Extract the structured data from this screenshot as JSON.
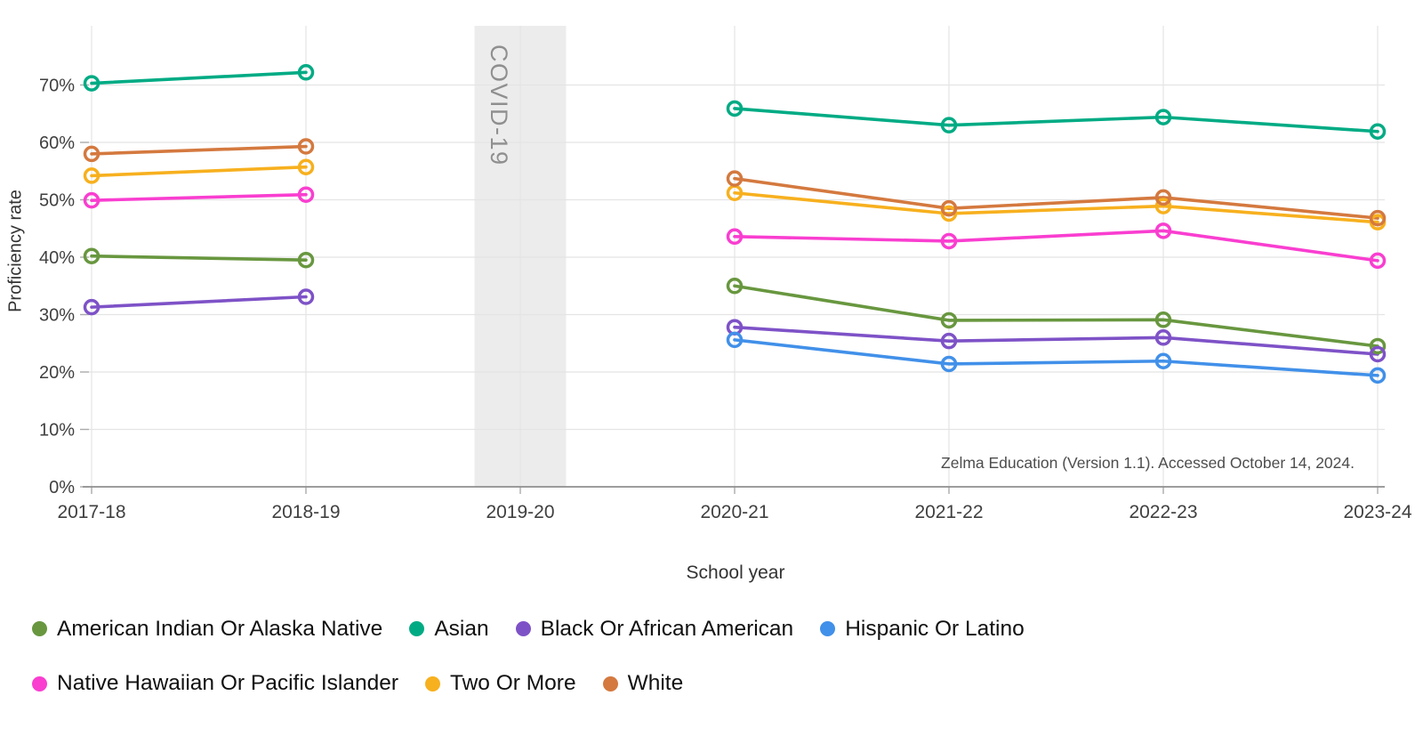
{
  "chart_data": {
    "type": "line",
    "title": "",
    "xlabel": "School year",
    "ylabel": "Proficiency rate",
    "categories": [
      "2017-18",
      "2018-19",
      "2019-20",
      "2020-21",
      "2021-22",
      "2022-23",
      "2023-24"
    ],
    "y_ticks": [
      "0%",
      "10%",
      "20%",
      "30%",
      "40%",
      "50%",
      "60%",
      "70%"
    ],
    "ylim": [
      0,
      80
    ],
    "grid": true,
    "legend_position": "bottom",
    "series": [
      {
        "name": "American Indian Or Alaska Native",
        "color": "#68973f",
        "values": [
          40.2,
          39.5,
          null,
          35.0,
          29.0,
          29.1,
          24.5
        ]
      },
      {
        "name": "Asian",
        "color": "#00ab84",
        "values": [
          70.3,
          72.2,
          null,
          65.9,
          63.0,
          64.4,
          61.9
        ]
      },
      {
        "name": "Black Or African American",
        "color": "#7e52c7",
        "values": [
          31.3,
          33.1,
          null,
          27.8,
          25.4,
          26.0,
          23.1
        ]
      },
      {
        "name": "Hispanic Or Latino",
        "color": "#4190e9",
        "values": [
          null,
          null,
          null,
          25.6,
          21.4,
          21.9,
          19.4
        ]
      },
      {
        "name": "Native Hawaiian Or Pacific Islander",
        "color": "#f93ed0",
        "values": [
          49.9,
          50.9,
          null,
          43.6,
          42.8,
          44.6,
          39.4
        ]
      },
      {
        "name": "Two Or More",
        "color": "#f7b01e",
        "values": [
          54.2,
          55.7,
          null,
          51.2,
          47.6,
          48.9,
          46.1
        ]
      },
      {
        "name": "White",
        "color": "#d4793f",
        "values": [
          58.0,
          59.3,
          null,
          53.7,
          48.5,
          50.4,
          46.8
        ]
      }
    ],
    "legend_rows": [
      [
        0,
        1,
        2,
        3
      ],
      [
        4,
        5,
        6
      ]
    ],
    "covid_annotation": {
      "label": "COVID-19",
      "category": "2019-20"
    },
    "attribution": "Zelma Education (Version 1.1). Accessed October 14, 2024."
  },
  "style": {
    "grid_color": "#e4e4e4",
    "band_color": "#ececec",
    "band_text_color": "#8f8f8f",
    "axis_line_color": "#8f8f8f",
    "tick_color": "#aaaaaa",
    "tick_label_color": "#404040"
  }
}
